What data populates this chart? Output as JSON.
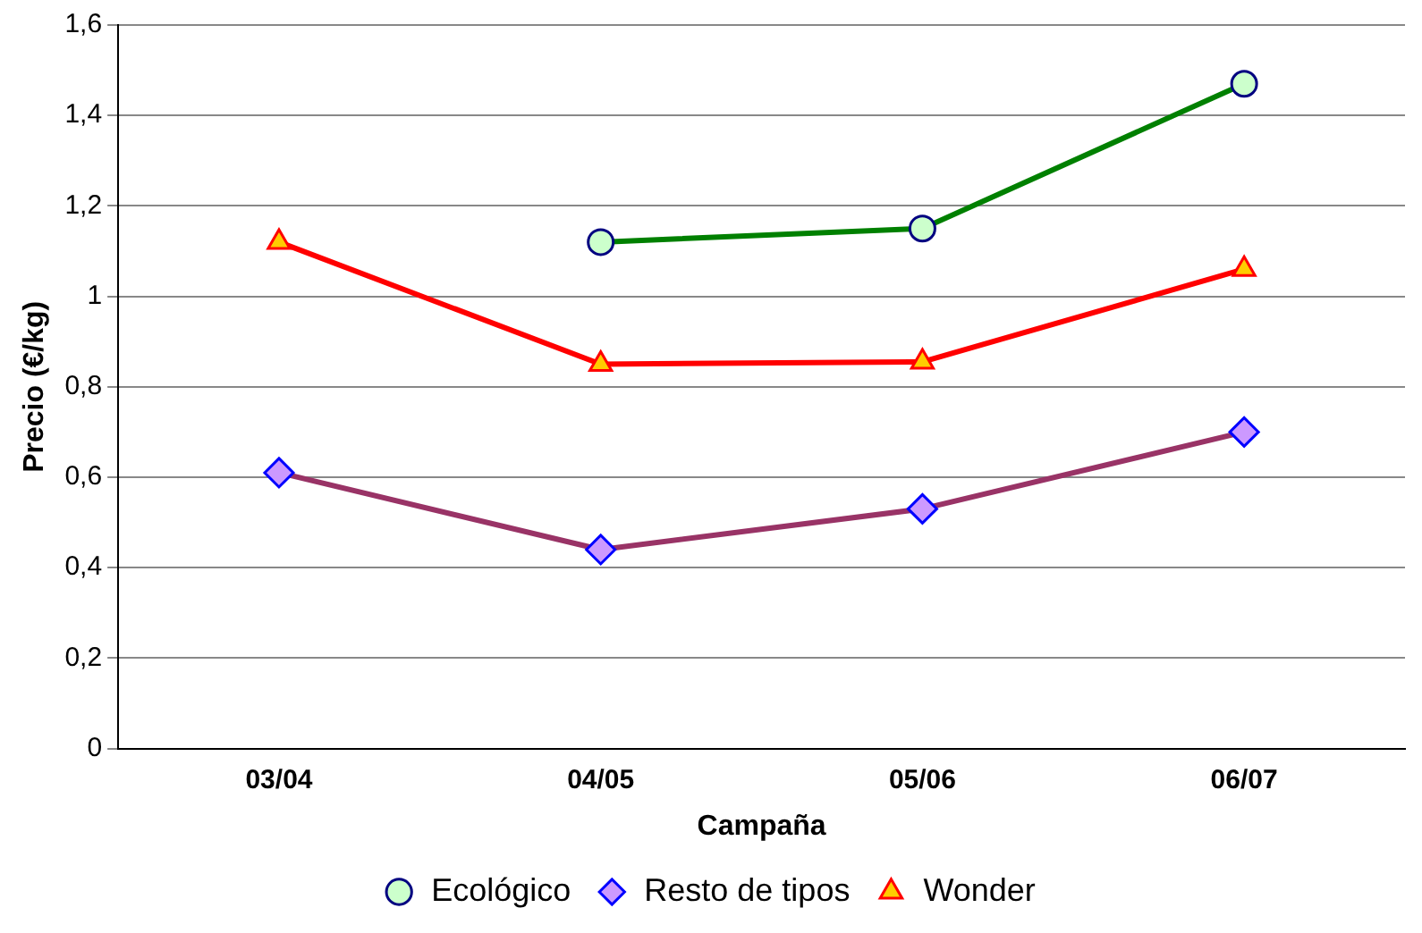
{
  "chart_data": {
    "type": "line",
    "xlabel": "Campaña",
    "ylabel": "Precio (€/kg)",
    "categories": [
      "03/04",
      "04/05",
      "05/06",
      "06/07"
    ],
    "series": [
      {
        "name": "Ecológico",
        "color": "#008000",
        "marker": "circle",
        "values": [
          null,
          1.12,
          1.15,
          1.47
        ]
      },
      {
        "name": "Resto de tipos",
        "color": "#993366",
        "marker": "diamond",
        "values": [
          0.61,
          0.44,
          0.53,
          0.7
        ]
      },
      {
        "name": "Wonder",
        "color": "#ff0000",
        "marker": "triangle",
        "values": [
          1.12,
          0.85,
          0.855,
          1.06
        ]
      }
    ],
    "ylim": [
      0,
      1.6
    ],
    "yticks": [
      {
        "value": 0,
        "label": "0"
      },
      {
        "value": 0.2,
        "label": "0,2"
      },
      {
        "value": 0.4,
        "label": "0,4"
      },
      {
        "value": 0.6,
        "label": "0,6"
      },
      {
        "value": 0.8,
        "label": "0,8"
      },
      {
        "value": 1,
        "label": "1"
      },
      {
        "value": 1.2,
        "label": "1,2"
      },
      {
        "value": 1.4,
        "label": "1,4"
      },
      {
        "value": 1.6,
        "label": "1,6"
      }
    ],
    "grid": "y",
    "legend": "bottom",
    "line_style": "solid"
  }
}
